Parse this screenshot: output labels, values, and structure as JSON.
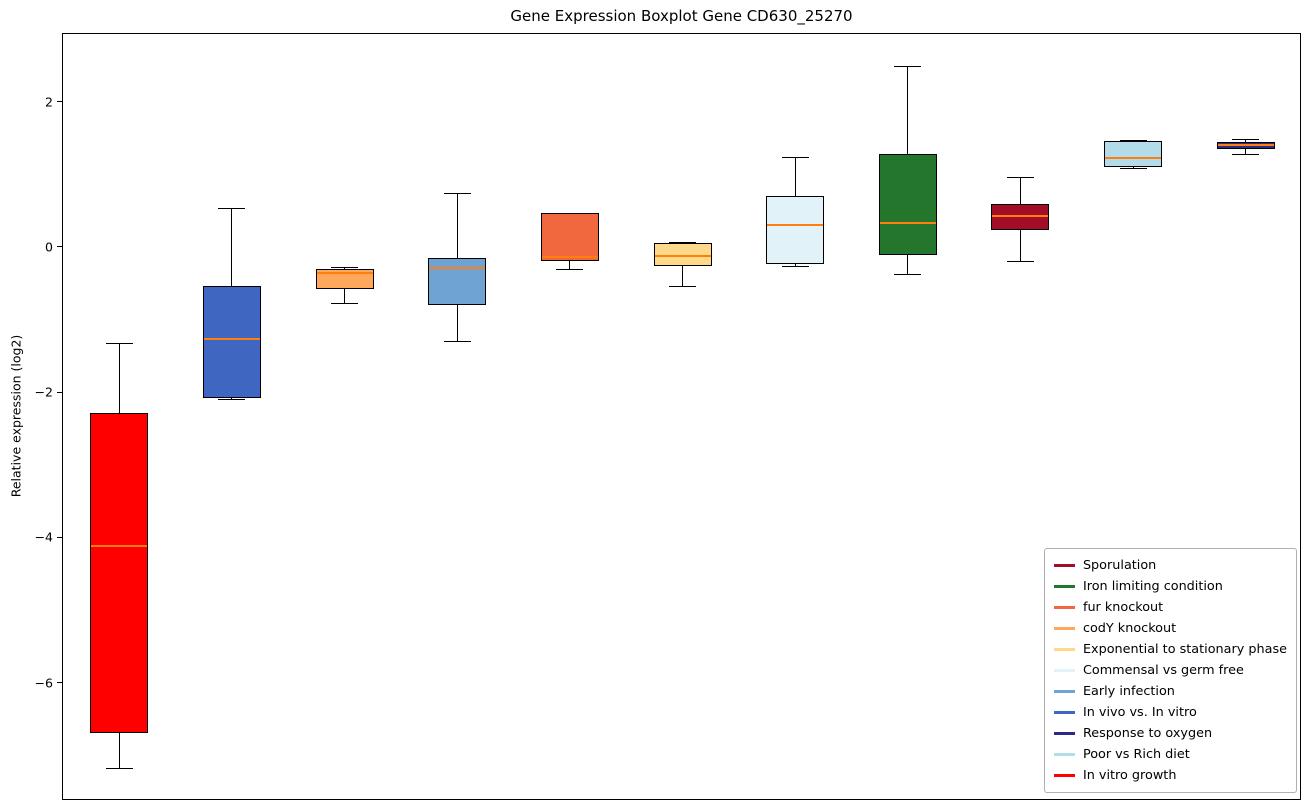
{
  "chart_data": {
    "type": "boxplot",
    "title": "Gene Expression Boxplot Gene CD630_25270",
    "ylabel": "Relative expression (log2)",
    "ylim": [
      -7.63,
      2.93
    ],
    "yticks": [
      {
        "value": 2,
        "label": "2"
      },
      {
        "value": 0,
        "label": "0"
      },
      {
        "value": -2,
        "label": "−2"
      },
      {
        "value": -4,
        "label": "−4"
      },
      {
        "value": -6,
        "label": "−6"
      }
    ],
    "median_color": "#ff7f0e",
    "grid": false,
    "legend_position": "lower right",
    "series": [
      {
        "name": "In vitro growth",
        "color": "#ff0000",
        "whisker_low": -7.18,
        "q1": -6.7,
        "median": -4.12,
        "q3": -2.29,
        "whisker_high": -1.33
      },
      {
        "name": "In vivo vs. In vitro",
        "color": "#3f67c2",
        "whisker_low": -2.09,
        "q1": -2.08,
        "median": -1.27,
        "q3": -0.54,
        "whisker_high": 0.54
      },
      {
        "name": "codY knockout",
        "color": "#ffa85c",
        "whisker_low": -0.77,
        "q1": -0.58,
        "median": -0.36,
        "q3": -0.31,
        "whisker_high": -0.28
      },
      {
        "name": "Early infection",
        "color": "#6fa3d3",
        "whisker_low": -1.3,
        "q1": -0.8,
        "median": -0.29,
        "q3": -0.15,
        "whisker_high": 0.74
      },
      {
        "name": "fur knockout",
        "color": "#f2683e",
        "whisker_low": -0.31,
        "q1": -0.2,
        "median": -0.14,
        "q3": 0.46,
        "whisker_high": 0.47
      },
      {
        "name": "Exponential to stationary phase",
        "color": "#ffd98a",
        "whisker_low": -0.54,
        "q1": -0.26,
        "median": -0.13,
        "q3": 0.05,
        "whisker_high": 0.06
      },
      {
        "name": "Commensal vs germ free",
        "color": "#e1f2f9",
        "whisker_low": -0.26,
        "q1": -0.24,
        "median": 0.3,
        "q3": 0.7,
        "whisker_high": 1.24
      },
      {
        "name": "Iron limiting condition",
        "color": "#25762d",
        "whisker_low": -0.38,
        "q1": -0.11,
        "median": 0.33,
        "q3": 1.28,
        "whisker_high": 2.49
      },
      {
        "name": "Sporulation",
        "color": "#a40d28",
        "whisker_low": -0.2,
        "q1": 0.23,
        "median": 0.42,
        "q3": 0.59,
        "whisker_high": 0.96
      },
      {
        "name": "Poor vs Rich diet",
        "color": "#b3dcea",
        "whisker_low": 1.09,
        "q1": 1.1,
        "median": 1.22,
        "q3": 1.46,
        "whisker_high": 1.47
      },
      {
        "name": "Response to oxygen",
        "color": "#2b2b87",
        "whisker_low": 1.28,
        "q1": 1.35,
        "median": 1.4,
        "q3": 1.44,
        "whisker_high": 1.48
      }
    ],
    "legend": [
      {
        "label": "Sporulation",
        "color": "#a40d28"
      },
      {
        "label": "Iron limiting condition",
        "color": "#25762d"
      },
      {
        "label": "fur knockout",
        "color": "#f2683e"
      },
      {
        "label": "codY knockout",
        "color": "#ffa85c"
      },
      {
        "label": "Exponential to stationary phase",
        "color": "#ffd98a"
      },
      {
        "label": "Commensal vs germ free",
        "color": "#e1f2f9"
      },
      {
        "label": "Early infection",
        "color": "#6fa3d3"
      },
      {
        "label": "In vivo vs. In vitro",
        "color": "#3f67c2"
      },
      {
        "label": "Response to oxygen",
        "color": "#2b2b87"
      },
      {
        "label": "Poor vs Rich diet",
        "color": "#b3dcea"
      },
      {
        "label": "In vitro growth",
        "color": "#ff0000"
      }
    ]
  }
}
